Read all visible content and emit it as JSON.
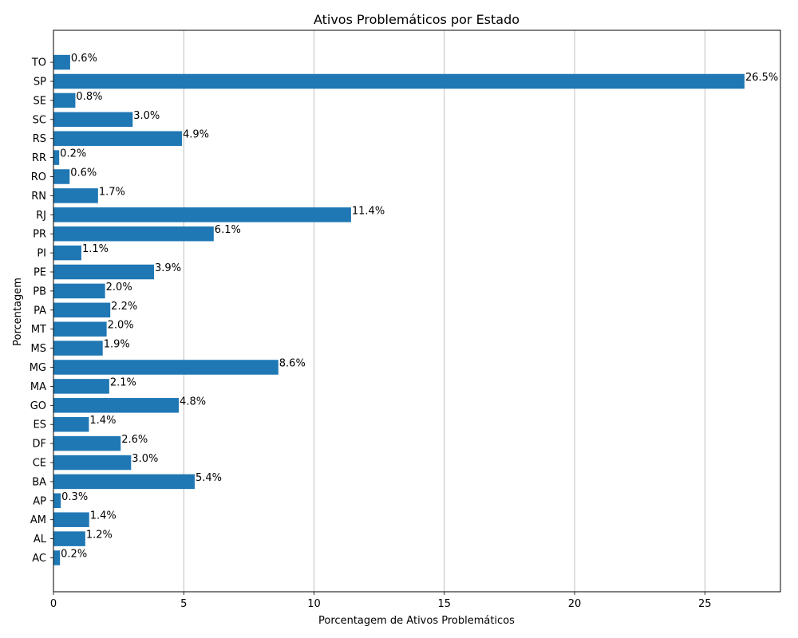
{
  "chart_data": {
    "type": "bar",
    "orientation": "horizontal",
    "title": "Ativos Problemáticos por Estado",
    "xlabel": "Porcentagem de Ativos Problemáticos",
    "ylabel": "Porcentagem",
    "xlim": [
      0,
      27.9
    ],
    "xticks": [
      0,
      5,
      10,
      15,
      20,
      25
    ],
    "grid": "x-axis vertical lines",
    "bar_color": "#1f77b4",
    "categories": [
      "AC",
      "AL",
      "AM",
      "AP",
      "BA",
      "CE",
      "DF",
      "ES",
      "GO",
      "MA",
      "MG",
      "MS",
      "MT",
      "PA",
      "PB",
      "PE",
      "PI",
      "PR",
      "RJ",
      "RN",
      "RO",
      "RR",
      "RS",
      "SC",
      "SE",
      "SP",
      "TO"
    ],
    "values": [
      0.25,
      1.22,
      1.37,
      0.28,
      5.42,
      2.98,
      2.58,
      1.36,
      4.81,
      2.14,
      8.63,
      1.89,
      2.04,
      2.18,
      1.98,
      3.86,
      1.07,
      6.15,
      11.42,
      1.71,
      0.62,
      0.22,
      4.93,
      3.04,
      0.84,
      26.52,
      0.64
    ],
    "labels": [
      "0.2%",
      "1.2%",
      "1.4%",
      "0.3%",
      "5.4%",
      "3.0%",
      "2.6%",
      "1.4%",
      "4.8%",
      "2.1%",
      "8.6%",
      "1.9%",
      "2.0%",
      "2.2%",
      "2.0%",
      "3.9%",
      "1.1%",
      "6.1%",
      "11.4%",
      "1.7%",
      "0.6%",
      "0.2%",
      "4.9%",
      "3.0%",
      "0.8%",
      "26.5%",
      "0.6%"
    ]
  }
}
